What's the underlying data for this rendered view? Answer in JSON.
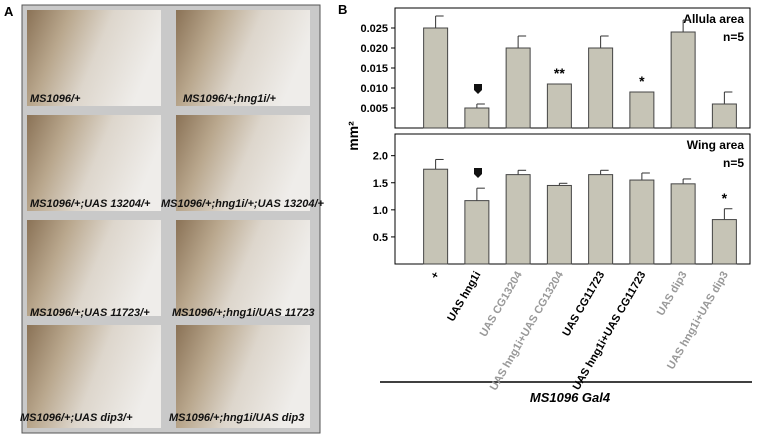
{
  "panel_a": {
    "label": "A",
    "captions": [
      "MS1096/+",
      "MS1096/+;hng1i/+",
      "MS1096/+;UAS 13204/+",
      "MS1096/+;hng1i/+;UAS 13204/+",
      "MS1096/+;UAS 11723/+",
      "MS1096/+;hng1i/UAS 11723",
      "MS1096/+;UAS dip3/+",
      "MS1096/+;hng1i/UAS dip3"
    ]
  },
  "panel_b": {
    "label": "B",
    "y_label": "mm²",
    "x_label": "MS1096 Gal4"
  },
  "chart_data": [
    {
      "type": "bar",
      "title": "Allula area",
      "subtitle": "n=5",
      "color": "#c6c4b6",
      "values": [
        0.025,
        0.005,
        0.02,
        0.011,
        0.02,
        0.009,
        0.024,
        0.006
      ],
      "errors": [
        0.003,
        0.001,
        0.003,
        0,
        0.003,
        0,
        0.003,
        0.003
      ],
      "ylim": [
        0,
        0.03
      ],
      "yticks": [
        0.005,
        {
          "value": 0.01,
          "label": "0.010"
        },
        0.015,
        {
          "value": 0.02,
          "label": "0.020"
        },
        0.025
      ],
      "annotations": [
        {
          "category": "UAS hng1i+UAS CG13204",
          "text": "**"
        },
        {
          "category": "UAS hng1i+UAS CG11723",
          "text": "*"
        }
      ]
    },
    {
      "type": "bar",
      "title": "Wing area",
      "subtitle": "n=5",
      "color": "#c6c4b6",
      "categories": [
        "+",
        "UAS hng1i",
        "UAS CG13204",
        "UAS hng1i+UAS CG13204",
        "UAS CG11723",
        "UAS hng1i+UAS CG11723",
        "UAS dip3",
        "UAS hng1i+UAS dip3"
      ],
      "category_colors": [
        "#000000",
        "#000000",
        "#999999",
        "#999999",
        "#000000",
        "#000000",
        "#999999",
        "#999999"
      ],
      "values": [
        1.75,
        1.17,
        1.65,
        1.45,
        1.65,
        1.55,
        1.48,
        0.82
      ],
      "errors": [
        0.18,
        0.23,
        0.08,
        0.04,
        0.08,
        0.13,
        0.09,
        0.2
      ],
      "ylim": [
        0,
        2.4
      ],
      "yticks": [
        0.5,
        {
          "value": 1,
          "label": "1.0"
        },
        1.5,
        {
          "value": 2,
          "label": "2.0"
        }
      ],
      "annotations": [
        {
          "category": "UAS hng1i+UAS dip3",
          "text": "*"
        }
      ]
    }
  ]
}
